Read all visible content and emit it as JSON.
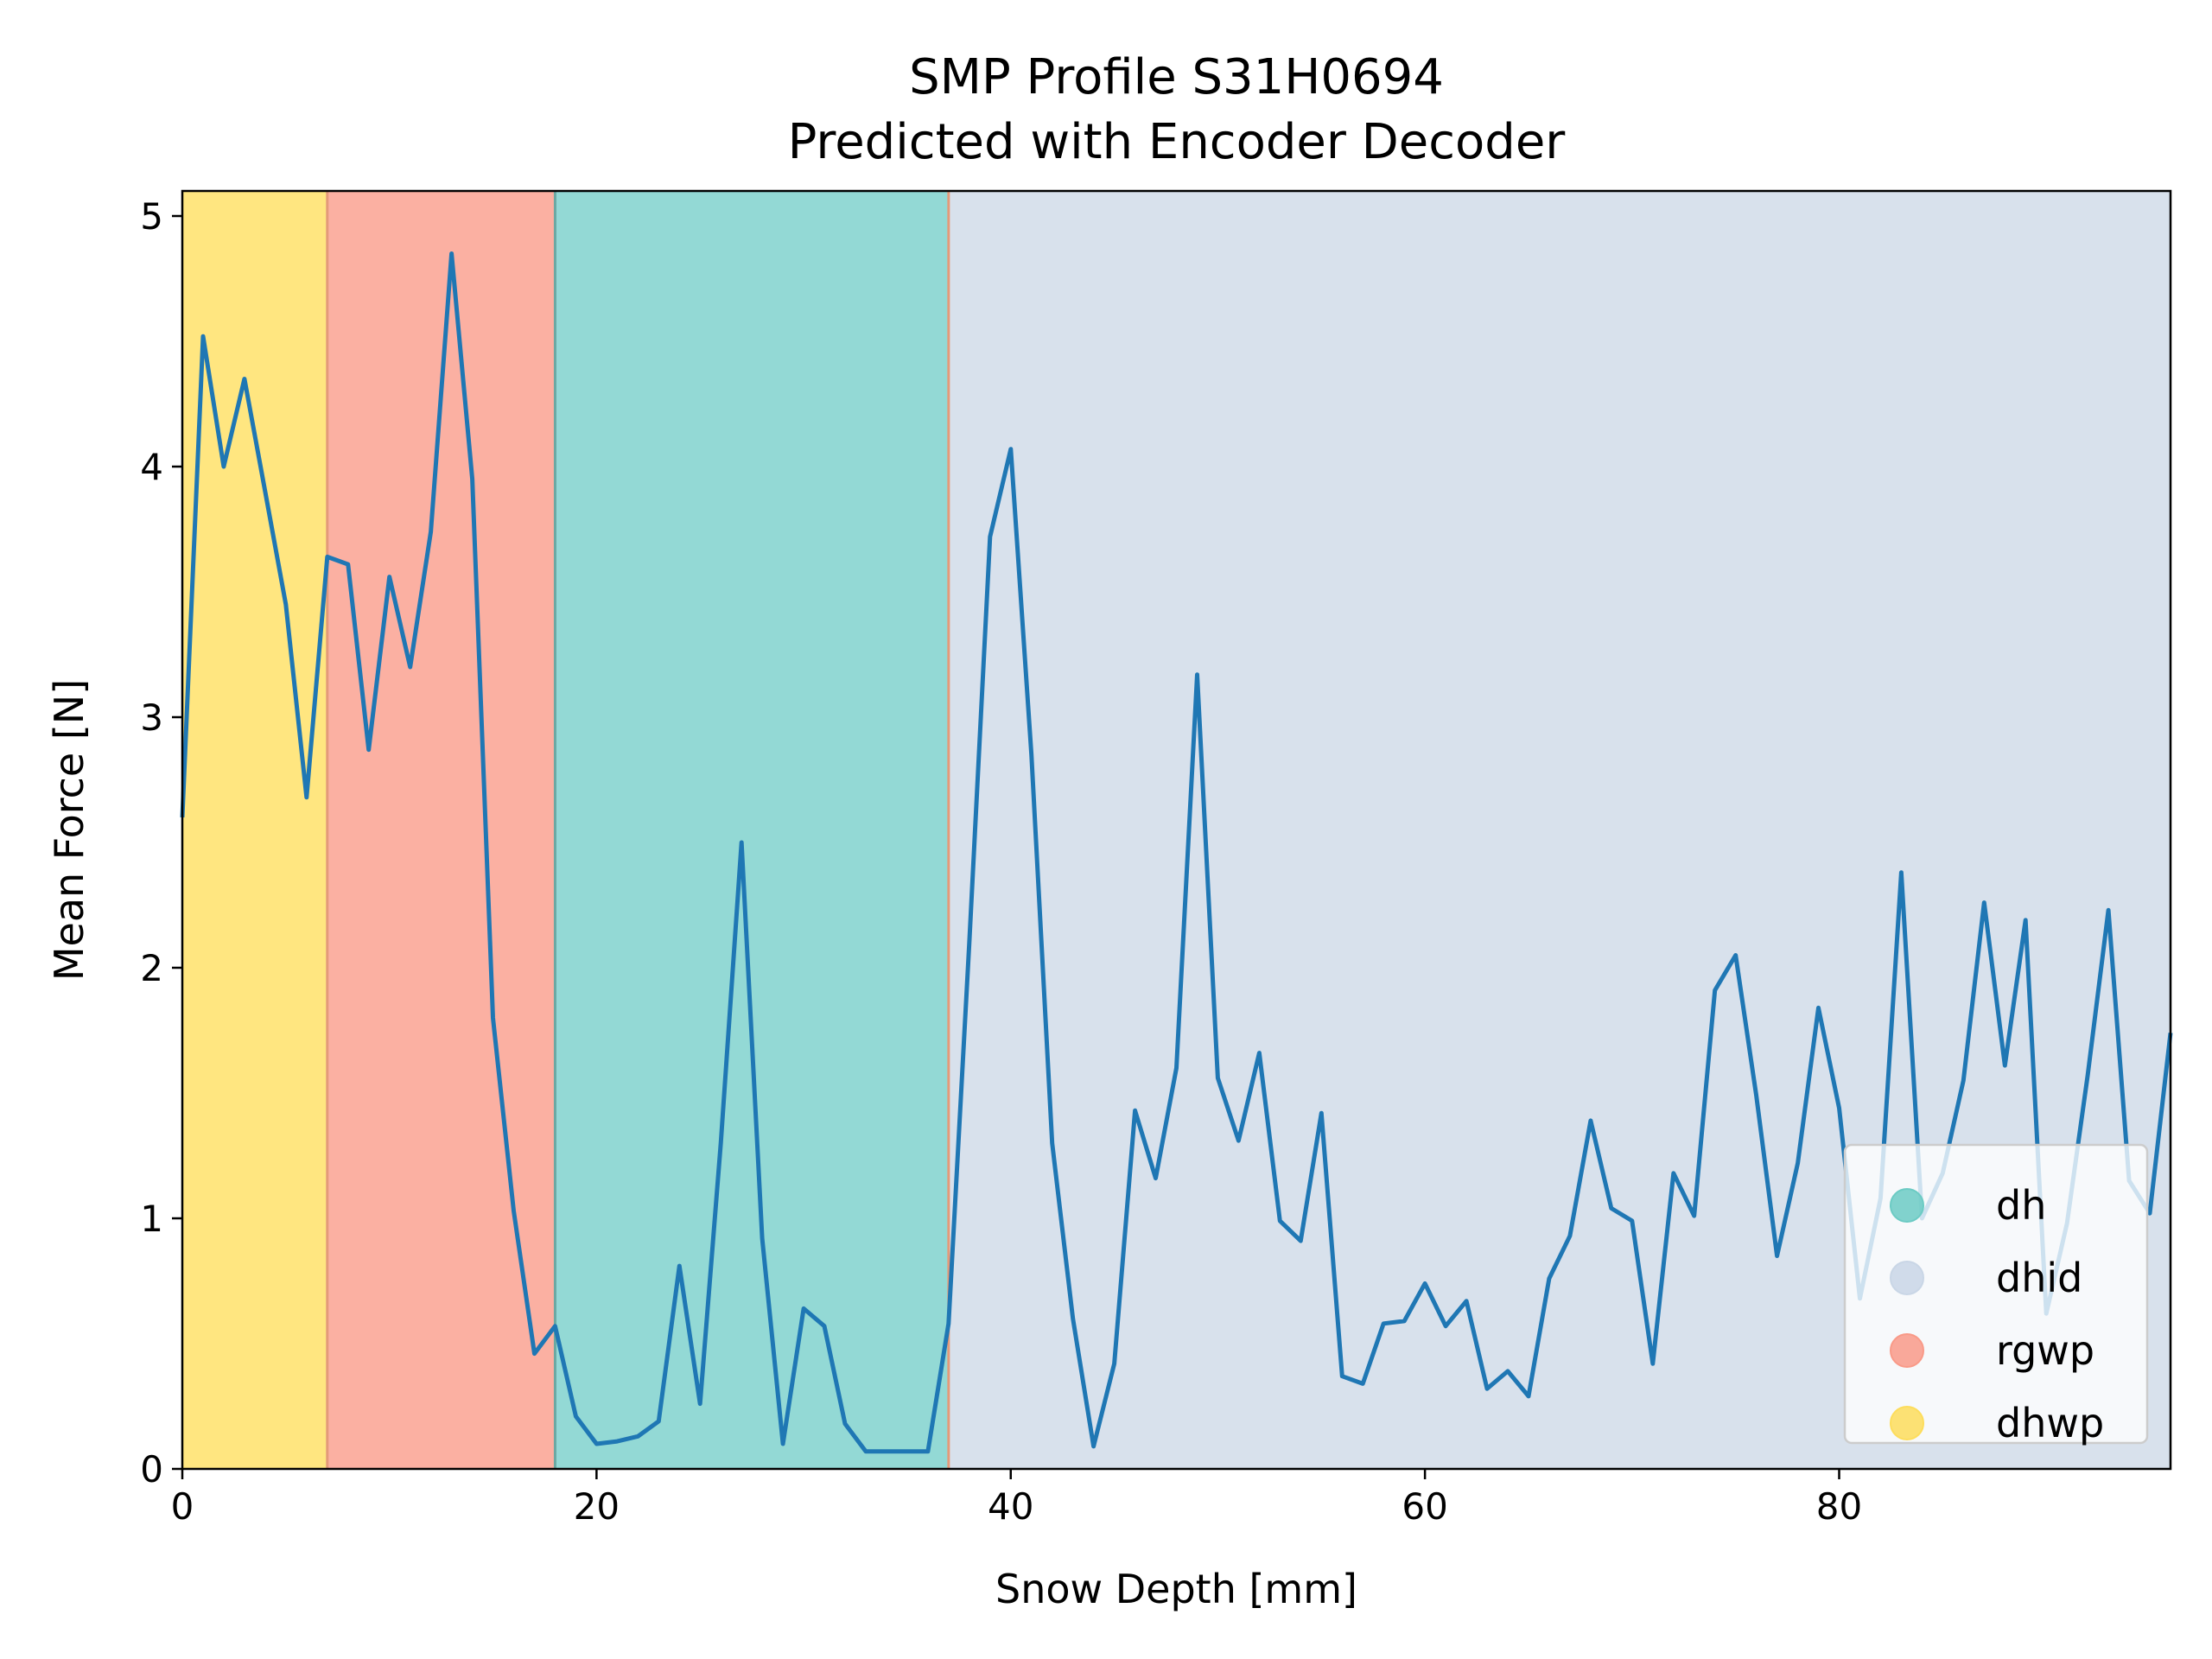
{
  "chart_data": {
    "type": "line",
    "title": "SMP Profile S31H0694",
    "subtitle": "Predicted with Encoder Decoder",
    "xlabel": "Snow Depth [mm]",
    "ylabel": "Mean Force [N]",
    "xlim": [
      0,
      96
    ],
    "ylim": [
      0,
      5.1
    ],
    "xticks": [
      0,
      20,
      40,
      60,
      80
    ],
    "yticks": [
      0,
      1,
      2,
      3,
      4,
      5
    ],
    "grid": false,
    "legend_position": "lower-right",
    "line_color": "#1f77b4",
    "segments": [
      {
        "label": "dhwp",
        "start": 0,
        "end": 7,
        "color": "#ffe680"
      },
      {
        "label": "rgwp",
        "start": 7,
        "end": 18,
        "color": "#fbb0a2"
      },
      {
        "label": "dh",
        "start": 18,
        "end": 37,
        "color": "#93d9d5"
      },
      {
        "label": "dhid",
        "start": 37,
        "end": 96,
        "color": "#d8e1ec"
      }
    ],
    "legend": [
      {
        "label": "dh",
        "color": "#6ccbc4"
      },
      {
        "label": "dhid",
        "color": "#c9d6e6"
      },
      {
        "label": "rgwp",
        "color": "#f99a88"
      },
      {
        "label": "dhwp",
        "color": "#fddd5c"
      }
    ],
    "series": [
      {
        "x": [
          0,
          1,
          2,
          3,
          4,
          5,
          6,
          7,
          8,
          9,
          10,
          11,
          12,
          13,
          14,
          15,
          16,
          17,
          18,
          19,
          20,
          21,
          22,
          23,
          24,
          25,
          26,
          27,
          28,
          29,
          30,
          31,
          32,
          33,
          34,
          35,
          36,
          37,
          38,
          39,
          40,
          41,
          42,
          43,
          44,
          45,
          46,
          47,
          48,
          49,
          50,
          51,
          52,
          53,
          54,
          55,
          56,
          57,
          58,
          59,
          60,
          61,
          62,
          63,
          64,
          65,
          66,
          67,
          68,
          69,
          70,
          71,
          72,
          73,
          74,
          75,
          76,
          77,
          78,
          79,
          80,
          81,
          82,
          83,
          84,
          85,
          86,
          87,
          88,
          89,
          90,
          91,
          92,
          93,
          94,
          95,
          96
        ],
        "y": [
          2.6,
          4.52,
          4.0,
          4.35,
          3.9,
          3.45,
          2.68,
          3.64,
          3.61,
          2.87,
          3.56,
          3.2,
          3.74,
          4.85,
          3.95,
          1.8,
          1.03,
          0.46,
          0.57,
          0.21,
          0.1,
          0.11,
          0.13,
          0.19,
          0.81,
          0.26,
          1.3,
          2.5,
          0.92,
          0.1,
          0.64,
          0.57,
          0.18,
          0.07,
          0.07,
          0.07,
          0.07,
          0.58,
          2.1,
          3.72,
          4.07,
          2.85,
          1.3,
          0.6,
          0.09,
          0.42,
          1.43,
          1.16,
          1.6,
          3.17,
          1.56,
          1.31,
          1.66,
          0.99,
          0.91,
          1.42,
          0.37,
          0.34,
          0.58,
          0.59,
          0.74,
          0.57,
          0.67,
          0.32,
          0.39,
          0.29,
          0.76,
          0.93,
          1.39,
          1.04,
          0.99,
          0.42,
          1.18,
          1.01,
          1.91,
          2.05,
          1.49,
          0.85,
          1.22,
          1.84,
          1.44,
          0.68,
          1.08,
          2.38,
          1.0,
          1.18,
          1.55,
          2.26,
          1.61,
          2.19,
          0.62,
          0.98,
          1.57,
          2.23,
          1.15,
          1.02,
          1.74
        ]
      }
    ]
  }
}
